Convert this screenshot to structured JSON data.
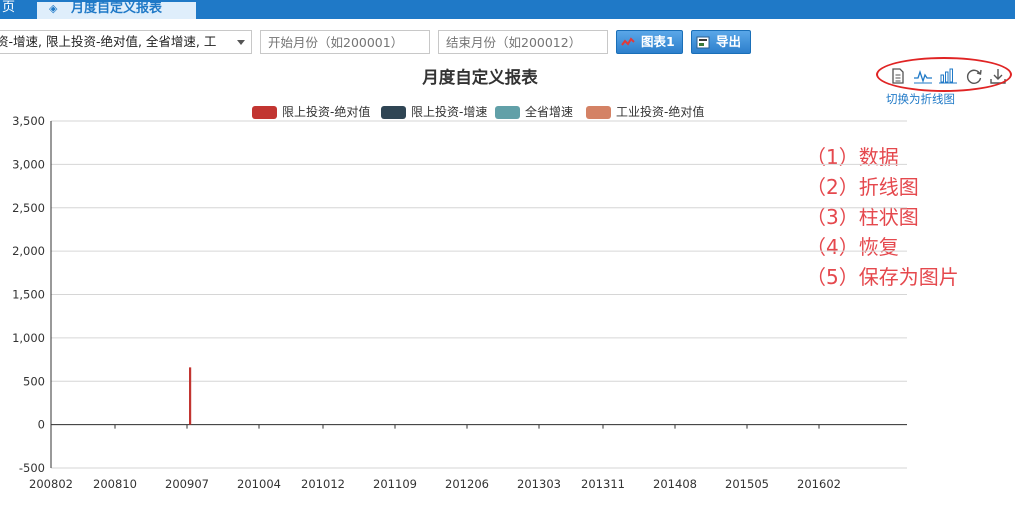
{
  "tabs": [
    {
      "label": "页"
    },
    {
      "label": "月度自定义报表"
    }
  ],
  "filter": {
    "indicator_value": "资-增速, 限上投资-绝对值, 全省增速, 工",
    "start_placeholder": "开始月份（如200001）",
    "end_placeholder": "结束月份（如200012）",
    "chart_button": "图表1",
    "export_button": "导出"
  },
  "toolbox": {
    "icons": [
      "data-view-icon",
      "line-chart-icon",
      "bar-chart-icon",
      "restore-icon",
      "save-image-icon"
    ],
    "tooltip": "切换为折线图"
  },
  "annotations": [
    "（1）数据",
    "（2）折线图",
    "（3）柱状图",
    "（4）恢复",
    "（5）保存为图片"
  ],
  "colors": {
    "tab_bar": "#1f79c7",
    "series": [
      "#c23531",
      "#2f4554",
      "#61a0a8",
      "#d48265"
    ],
    "annotation": "#e5484d"
  },
  "chart_data": {
    "type": "bar",
    "title": "月度自定义报表",
    "legend_position": "top",
    "grid": "horizontal",
    "ylim": [
      -500,
      3500
    ],
    "y_ticks": [
      "3,500",
      "3,000",
      "2,500",
      "2,000",
      "1,500",
      "1,000",
      "500",
      "0",
      "-500"
    ],
    "x_tick_labels": [
      "200802",
      "200810",
      "200907",
      "201004",
      "201012",
      "201109",
      "201206",
      "201303",
      "201311",
      "201408",
      "201505",
      "201602"
    ],
    "start_month": "200802",
    "series": [
      {
        "name": "限上投资-绝对值",
        "values": [
          0,
          0,
          0,
          0,
          0,
          0,
          0,
          0,
          0,
          0,
          0,
          0,
          0,
          0,
          0,
          0,
          0,
          660,
          0,
          0,
          0,
          0,
          0,
          0,
          0,
          0,
          0,
          0,
          0,
          0,
          0,
          0,
          0,
          0,
          0,
          0,
          0,
          0,
          0,
          0,
          0,
          0,
          0,
          0,
          0,
          0,
          0,
          0,
          0,
          0,
          0,
          0,
          0,
          0,
          0,
          0,
          0,
          0,
          0,
          0,
          0,
          0,
          0,
          0,
          0,
          0,
          0,
          0,
          0,
          0,
          0,
          0,
          0,
          0,
          0,
          0,
          0,
          0,
          0,
          0,
          0,
          0,
          0,
          0,
          0,
          0,
          0,
          0,
          0,
          0,
          0,
          0,
          0,
          0,
          0,
          0,
          0,
          0,
          0,
          0,
          0,
          0,
          0,
          0,
          0,
          0,
          0,
          0,
          0,
          0,
          0,
          0,
          0,
          0,
          0,
          0,
          0,
          0,
          0,
          0,
          0,
          0,
          0,
          0,
          0,
          0,
          0,
          0,
          0,
          0,
          0,
          0,
          0,
          0,
          0,
          0,
          0,
          0,
          0,
          0,
          0,
          0,
          0,
          0,
          0,
          0,
          0,
          0,
          0,
          0,
          0,
          0,
          0,
          0,
          0,
          0,
          0,
          0,
          0,
          0,
          0,
          0,
          0,
          0,
          0,
          0,
          0,
          0,
          0,
          0,
          0,
          0,
          0,
          0,
          0,
          0,
          0,
          0,
          0,
          0,
          0,
          0,
          0,
          0,
          0,
          0,
          0,
          0,
          0,
          0,
          0,
          0,
          0,
          0,
          0,
          0,
          0,
          0,
          0,
          0,
          0,
          0,
          0,
          0,
          0,
          0,
          0,
          0,
          0,
          0,
          0,
          0
        ]
      },
      {
        "name": "限上投资-增速",
        "values": []
      },
      {
        "name": "全省增速",
        "values": []
      },
      {
        "name": "工业投资-绝对值",
        "values": []
      }
    ]
  }
}
